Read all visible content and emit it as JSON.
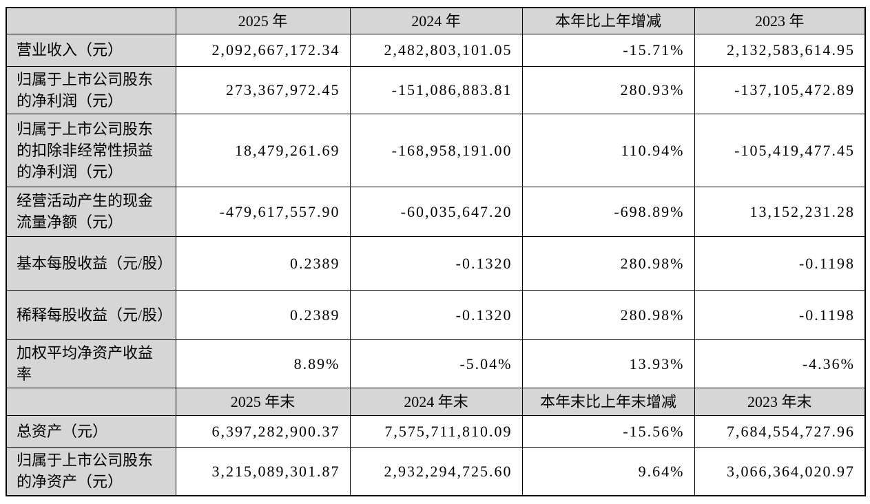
{
  "table": {
    "colors": {
      "header_bg": "#d6d6d6",
      "label_bg": "#d6d6d6",
      "border": "#000000",
      "text": "#000000",
      "cell_bg": "#ffffff"
    },
    "header_primary": {
      "corner": "",
      "columns": [
        "2025 年",
        "2024 年",
        "本年比上年增减",
        "2023 年"
      ]
    },
    "rows_primary": [
      {
        "label": "营业收入（元）",
        "values": [
          "2,092,667,172.34",
          "2,482,803,101.05",
          "-15.71%",
          "2,132,583,614.95"
        ]
      },
      {
        "label": "归属于上市公司股东的净利润（元）",
        "values": [
          "273,367,972.45",
          "-151,086,883.81",
          "280.93%",
          "-137,105,472.89"
        ]
      },
      {
        "label": "归属于上市公司股东的扣除非经常性损益的净利润（元）",
        "values": [
          "18,479,261.69",
          "-168,958,191.00",
          "110.94%",
          "-105,419,477.45"
        ]
      },
      {
        "label": "经营活动产生的现金流量净额（元）",
        "values": [
          "-479,617,557.90",
          "-60,035,647.20",
          "-698.89%",
          "13,152,231.28"
        ]
      },
      {
        "label": "基本每股收益（元/股）",
        "values": [
          "0.2389",
          "-0.1320",
          "280.98%",
          "-0.1198"
        ]
      },
      {
        "label": "稀释每股收益（元/股）",
        "values": [
          "0.2389",
          "-0.1320",
          "280.98%",
          "-0.1198"
        ]
      },
      {
        "label": "加权平均净资产收益率",
        "values": [
          "8.89%",
          "-5.04%",
          "13.93%",
          "-4.36%"
        ]
      }
    ],
    "header_secondary": {
      "corner": "",
      "columns": [
        "2025 年末",
        "2024 年末",
        "本年末比上年末增减",
        "2023 年末"
      ]
    },
    "rows_secondary": [
      {
        "label": "总资产（元）",
        "values": [
          "6,397,282,900.37",
          "7,575,711,810.09",
          "-15.56%",
          "7,684,554,727.96"
        ]
      },
      {
        "label": "归属于上市公司股东的净资产（元）",
        "values": [
          "3,215,089,301.87",
          "2,932,294,725.60",
          "9.64%",
          "3,066,364,020.97"
        ]
      }
    ]
  }
}
